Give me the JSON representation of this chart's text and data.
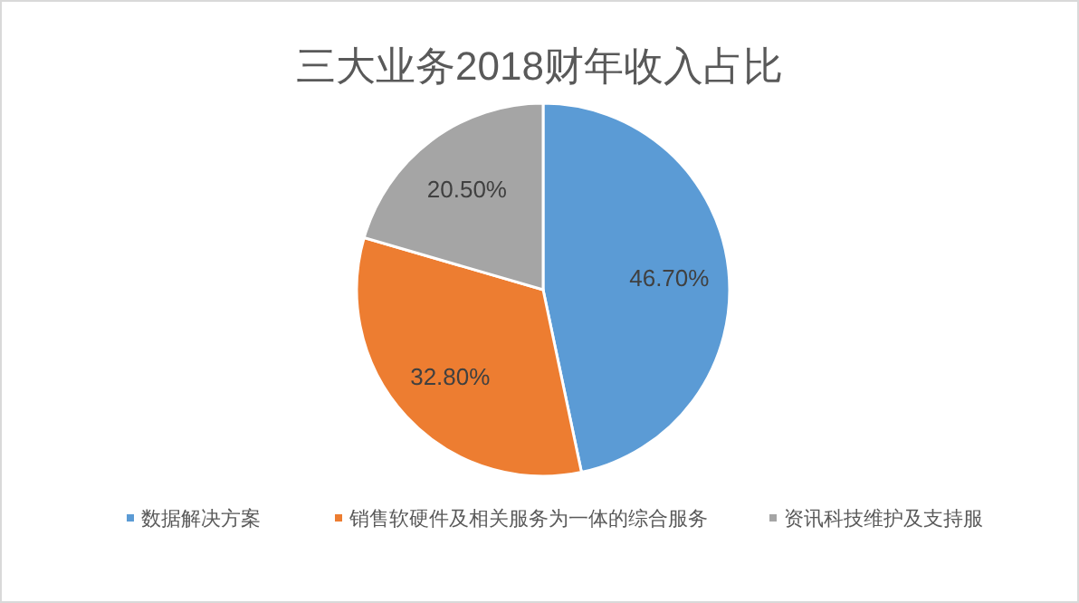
{
  "chart_data": {
    "type": "pie",
    "title": "三大业务2018财年收入占比",
    "categories": [
      "数据解决方案",
      "销售软硬件及相关服务为一体的综合服务",
      "资讯科技维护及支持服"
    ],
    "values": [
      46.7,
      32.8,
      20.5
    ],
    "colors": [
      "#5b9bd5",
      "#ed7d31",
      "#a5a5a5"
    ],
    "value_labels": [
      "46.70%",
      "32.80%",
      "20.50%"
    ],
    "legend": "bottom"
  }
}
